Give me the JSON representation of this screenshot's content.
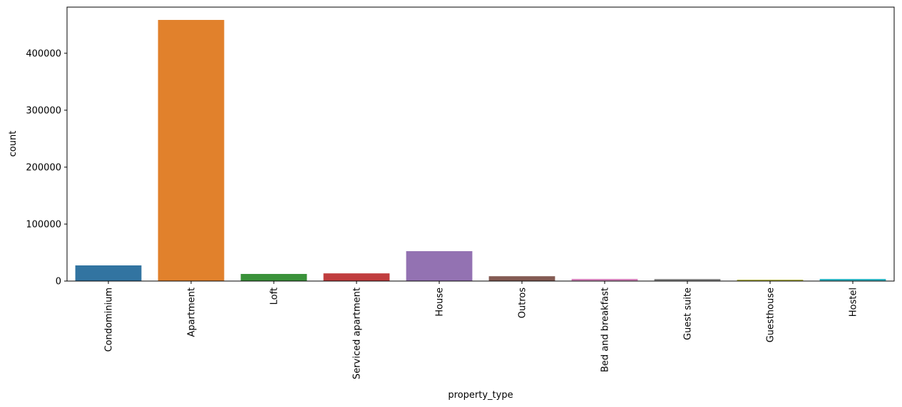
{
  "chart_data": {
    "type": "bar",
    "title": "",
    "xlabel": "property_type",
    "ylabel": "count",
    "categories": [
      "Condominium",
      "Apartment",
      "Loft",
      "Serviced apartment",
      "House",
      "Outros",
      "Bed and breakfast",
      "Guest suite",
      "Guesthouse",
      "Hostel"
    ],
    "values": [
      27500,
      458500,
      12500,
      13500,
      52500,
      8500,
      3800,
      3500,
      2300,
      3700
    ],
    "colors": [
      "#3274a1",
      "#e1812c",
      "#3a923a",
      "#c03d3e",
      "#9372b2",
      "#845b53",
      "#d684bd",
      "#7f7f7f",
      "#a9aa35",
      "#2eb3c2"
    ],
    "ylim": [
      0,
      481000
    ],
    "yticks": [
      0,
      100000,
      200000,
      300000,
      400000
    ],
    "grid": false,
    "legend": "none"
  }
}
